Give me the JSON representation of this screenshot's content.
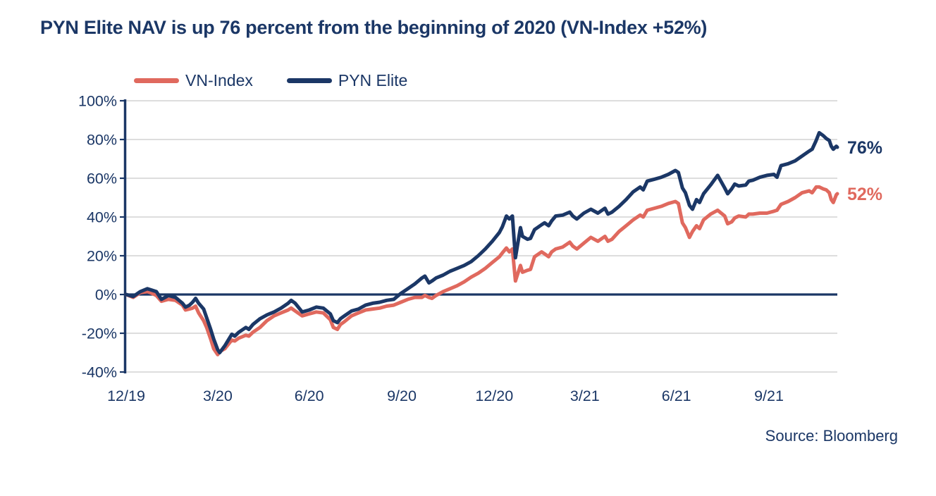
{
  "title": "PYN Elite NAV is up 76 percent from the beginning of 2020 (VN-Index +52%)",
  "source": "Source: Bloomberg",
  "colors": {
    "navy": "#1b3766",
    "salmon": "#e0695e",
    "grid": "#d8d8d8",
    "background": "#ffffff"
  },
  "legend": [
    {
      "label": "VN-Index",
      "color": "#e0695e"
    },
    {
      "label": "PYN Elite",
      "color": "#1b3766"
    }
  ],
  "chart_data": {
    "type": "line",
    "title": "PYN Elite NAV is up 76 percent from the beginning of 2020 (VN-Index +52%)",
    "xlabel": "",
    "ylabel": "",
    "y_unit": "%",
    "ylim": [
      -40,
      100
    ],
    "grid": "horizontal",
    "zero_line_emphasized": true,
    "legend_position": "top-left",
    "x_range": [
      "2019-12-31",
      "2021-12-07"
    ],
    "x_ticks": [
      {
        "date": "2019-12-31",
        "label": "12/19"
      },
      {
        "date": "2020-03-31",
        "label": "3/20"
      },
      {
        "date": "2020-06-30",
        "label": "6/20"
      },
      {
        "date": "2020-09-30",
        "label": "9/20"
      },
      {
        "date": "2020-12-31",
        "label": "12/20"
      },
      {
        "date": "2021-03-31",
        "label": "3/21"
      },
      {
        "date": "2021-06-30",
        "label": "6/21"
      },
      {
        "date": "2021-09-30",
        "label": "9/21"
      }
    ],
    "y_ticks": [
      {
        "value": 100,
        "label": "100%"
      },
      {
        "value": 80,
        "label": "80%"
      },
      {
        "value": 60,
        "label": "60%"
      },
      {
        "value": 40,
        "label": "40%"
      },
      {
        "value": 20,
        "label": "20%"
      },
      {
        "value": 0,
        "label": "0%"
      },
      {
        "value": -20,
        "label": "-20%"
      },
      {
        "value": -40,
        "label": "-40%"
      }
    ],
    "dates": [
      "2019-12-31",
      "2020-01-07",
      "2020-01-14",
      "2020-01-21",
      "2020-01-24",
      "2020-01-30",
      "2020-02-04",
      "2020-02-11",
      "2020-02-18",
      "2020-02-25",
      "2020-02-28",
      "2020-03-03",
      "2020-03-06",
      "2020-03-09",
      "2020-03-12",
      "2020-03-17",
      "2020-03-20",
      "2020-03-24",
      "2020-03-27",
      "2020-03-31",
      "2020-04-02",
      "2020-04-07",
      "2020-04-14",
      "2020-04-17",
      "2020-04-21",
      "2020-04-28",
      "2020-05-01",
      "2020-05-05",
      "2020-05-12",
      "2020-05-19",
      "2020-05-26",
      "2020-06-02",
      "2020-06-09",
      "2020-06-12",
      "2020-06-16",
      "2020-06-23",
      "2020-06-30",
      "2020-07-07",
      "2020-07-14",
      "2020-07-21",
      "2020-07-24",
      "2020-07-28",
      "2020-07-31",
      "2020-08-04",
      "2020-08-11",
      "2020-08-18",
      "2020-08-25",
      "2020-09-01",
      "2020-09-08",
      "2020-09-15",
      "2020-09-22",
      "2020-09-29",
      "2020-10-06",
      "2020-10-13",
      "2020-10-20",
      "2020-10-23",
      "2020-10-27",
      "2020-10-30",
      "2020-11-03",
      "2020-11-10",
      "2020-11-17",
      "2020-11-24",
      "2020-12-01",
      "2020-12-08",
      "2020-12-15",
      "2020-12-22",
      "2020-12-29",
      "2021-01-05",
      "2021-01-08",
      "2021-01-12",
      "2021-01-15",
      "2021-01-18",
      "2021-01-21",
      "2021-01-26",
      "2021-01-28",
      "2021-02-02",
      "2021-02-05",
      "2021-02-09",
      "2021-02-16",
      "2021-02-19",
      "2021-02-23",
      "2021-02-26",
      "2021-03-02",
      "2021-03-09",
      "2021-03-16",
      "2021-03-19",
      "2021-03-23",
      "2021-03-30",
      "2021-04-06",
      "2021-04-13",
      "2021-04-20",
      "2021-04-23",
      "2021-04-27",
      "2021-05-04",
      "2021-05-11",
      "2021-05-18",
      "2021-05-25",
      "2021-05-28",
      "2021-06-01",
      "2021-06-08",
      "2021-06-15",
      "2021-06-22",
      "2021-06-29",
      "2021-07-02",
      "2021-07-06",
      "2021-07-09",
      "2021-07-13",
      "2021-07-16",
      "2021-07-20",
      "2021-07-23",
      "2021-07-27",
      "2021-08-03",
      "2021-08-10",
      "2021-08-17",
      "2021-08-20",
      "2021-08-24",
      "2021-08-27",
      "2021-08-31",
      "2021-09-07",
      "2021-09-10",
      "2021-09-14",
      "2021-09-21",
      "2021-09-28",
      "2021-10-05",
      "2021-10-08",
      "2021-10-12",
      "2021-10-19",
      "2021-10-26",
      "2021-11-02",
      "2021-11-09",
      "2021-11-12",
      "2021-11-16",
      "2021-11-19",
      "2021-11-23",
      "2021-11-26",
      "2021-11-29",
      "2021-12-01",
      "2021-12-03",
      "2021-12-06",
      "2021-12-07"
    ],
    "series": [
      {
        "name": "PYN Elite",
        "color": "#1b3766",
        "end_label": "76%",
        "final_value_pct": 76,
        "values": [
          0,
          -1,
          1.5,
          3,
          2.5,
          1.5,
          -2.5,
          -0.5,
          -1.5,
          -4.5,
          -6.5,
          -5.5,
          -4,
          -2,
          -4.5,
          -7.5,
          -12,
          -18,
          -23,
          -28.5,
          -30,
          -26.5,
          -20.5,
          -21.5,
          -19.5,
          -17,
          -18,
          -15.5,
          -12.5,
          -10.5,
          -9,
          -7,
          -4.5,
          -3,
          -4.5,
          -9,
          -8,
          -6.5,
          -7,
          -10,
          -13.5,
          -14.5,
          -12.5,
          -11,
          -8.5,
          -7.5,
          -5.5,
          -4.5,
          -4,
          -3,
          -2.5,
          0.5,
          3,
          5.5,
          8.5,
          9.5,
          6,
          7,
          8.5,
          10,
          12,
          13.5,
          15,
          17,
          20,
          23.5,
          27.5,
          32,
          35,
          40.5,
          39,
          40.5,
          19,
          34.5,
          30,
          28.5,
          29,
          33.5,
          36,
          37,
          35.5,
          38,
          40.5,
          41,
          42.5,
          40.5,
          39,
          42,
          44,
          42,
          44.5,
          41.5,
          42.5,
          45.5,
          49,
          53,
          55.5,
          54,
          58.5,
          59.5,
          60.5,
          62,
          64,
          63,
          55,
          52.5,
          46,
          44,
          49,
          47.5,
          52,
          56.5,
          61.5,
          55,
          52,
          54.5,
          57,
          56,
          56.5,
          58.5,
          59,
          60.5,
          61.5,
          62,
          60.5,
          66.5,
          67.5,
          69,
          71.5,
          74,
          75,
          79.5,
          83.5,
          82,
          80.5,
          79.5,
          76.5,
          75,
          76.5,
          76
        ]
      },
      {
        "name": "VN-Index",
        "color": "#e0695e",
        "end_label": "52%",
        "final_value_pct": 52,
        "values": [
          0,
          -1.5,
          1,
          1.5,
          1,
          -0.5,
          -3.5,
          -2.5,
          -3,
          -5.5,
          -8,
          -7.5,
          -7,
          -6,
          -9.5,
          -13.5,
          -17,
          -23,
          -28,
          -31,
          -29.5,
          -28,
          -23.5,
          -24,
          -22.5,
          -21,
          -21.5,
          -19.5,
          -17,
          -13.5,
          -11,
          -9.5,
          -8,
          -7,
          -8.5,
          -11,
          -10,
          -9,
          -9.5,
          -13,
          -17,
          -18,
          -15.5,
          -14,
          -11,
          -9.5,
          -8,
          -7.5,
          -7,
          -6,
          -5.5,
          -4,
          -2.5,
          -1.5,
          -1.5,
          -0.5,
          -1.5,
          -2,
          -0.5,
          1.5,
          3,
          4.5,
          6.5,
          9,
          11,
          13.5,
          16.5,
          19.5,
          21.5,
          24,
          22,
          23.5,
          7,
          15,
          11.5,
          12.5,
          13,
          19.5,
          22,
          21,
          19.5,
          22,
          23.5,
          24.5,
          27,
          25,
          23.5,
          26.5,
          29.5,
          27.5,
          30,
          27.5,
          28.5,
          32.5,
          35.5,
          38.5,
          41,
          40,
          43.5,
          44.5,
          45.5,
          47,
          48,
          47,
          37,
          34.5,
          29.5,
          32.5,
          35.5,
          34,
          38.5,
          41.5,
          43.5,
          40.5,
          36.5,
          37.5,
          39.5,
          40.5,
          40,
          41.5,
          41.5,
          42,
          42,
          43,
          43.5,
          46.5,
          48,
          50,
          52.5,
          53.5,
          52.5,
          55.5,
          55.5,
          54.5,
          54,
          52.5,
          49,
          47.5,
          51.5,
          52
        ]
      }
    ]
  }
}
